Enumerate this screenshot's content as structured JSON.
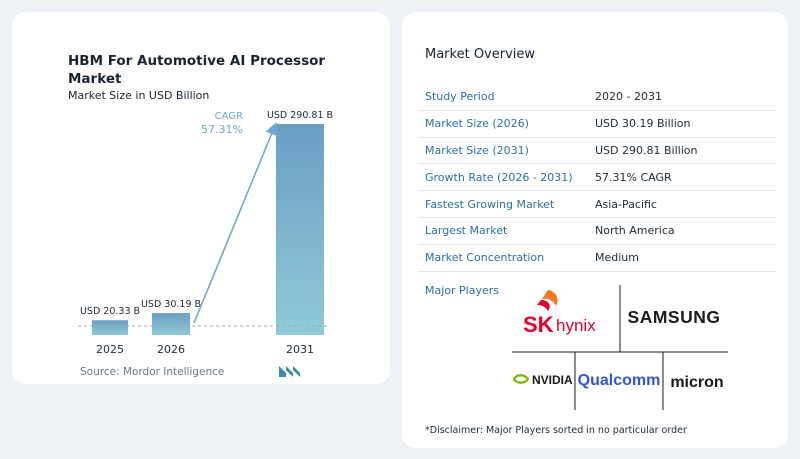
{
  "chart_card": {
    "title": "HBM For Automotive AI Processor Market",
    "subtitle": "Market Size in USD Billion",
    "cagr_label": "CAGR",
    "cagr_value": "57.31%",
    "source": "Source:  Mordor Intelligence"
  },
  "chart_data": {
    "type": "bar",
    "categories": [
      "2025",
      "2026",
      "2031"
    ],
    "values": [
      20.33,
      30.19,
      290.81
    ],
    "value_labels": [
      "USD 20.33 B",
      "USD 30.19 B",
      "USD 290.81 B"
    ],
    "title": "HBM For Automotive AI Processor Market",
    "subtitle": "Market Size in USD Billion",
    "ylim": [
      0,
      290.81
    ],
    "grid": false,
    "colors": {
      "bar_top": "#6a9ec4",
      "bar_bottom": "#8fcad6",
      "arrow": "#6fa8cf",
      "baseline": "#9aa7b4"
    }
  },
  "overview": {
    "title": "Market Overview",
    "rows": [
      {
        "label": "Study Period",
        "value": "2020 - 2031"
      },
      {
        "label": "Market Size (2026)",
        "value": "USD 30.19 Billion"
      },
      {
        "label": "Market Size (2031)",
        "value": "USD 290.81 Billion"
      },
      {
        "label": "Growth Rate (2026 - 2031)",
        "value": "57.31% CAGR"
      },
      {
        "label": "Fastest Growing Market",
        "value": "Asia-Pacific"
      },
      {
        "label": "Largest Market",
        "value": "North America"
      },
      {
        "label": "Market Concentration",
        "value": "Medium"
      }
    ],
    "players_label": "Major Players",
    "players": {
      "sk_primary": "SK",
      "sk_secondary": "hynix",
      "samsung": "SAMSUNG",
      "nvidia": "NVIDIA",
      "qualcomm": "Qualcomm",
      "micron": "micron"
    },
    "disclaimer": "*Disclaimer: Major Players sorted in no particular order"
  },
  "colors": {
    "accent_blue": "#2b6fa8",
    "sk_red": "#e4002b",
    "sk_orange": "#f47920",
    "qualcomm_blue": "#3253dc",
    "nvidia_green": "#76b900"
  }
}
